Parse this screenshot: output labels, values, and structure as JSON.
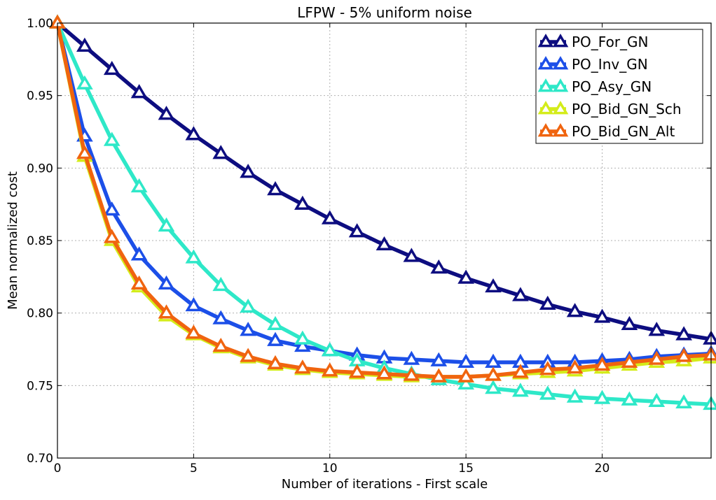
{
  "chart_data": {
    "type": "line",
    "title": "LFPW - 5% uniform noise",
    "xlabel": "Number of iterations - First scale",
    "ylabel": "Mean normalized cost",
    "xlim": [
      0,
      24
    ],
    "ylim": [
      0.7,
      1.0
    ],
    "x_ticks": [
      0,
      5,
      10,
      15,
      20
    ],
    "y_ticks": [
      0.7,
      0.75,
      0.8,
      0.85,
      0.9,
      0.95,
      1.0
    ],
    "x_tick_labels": [
      "0",
      "5",
      "10",
      "15",
      "20"
    ],
    "y_tick_labels": [
      "0.70",
      "0.75",
      "0.80",
      "0.85",
      "0.90",
      "0.95",
      "1.00"
    ],
    "grid": true,
    "legend_position": "top-right",
    "x": [
      0,
      1,
      2,
      3,
      4,
      5,
      6,
      7,
      8,
      9,
      10,
      11,
      12,
      13,
      14,
      15,
      16,
      17,
      18,
      19,
      20,
      21,
      22,
      23,
      24
    ],
    "series": [
      {
        "name": "PO_For_GN",
        "color": "#0d0d80",
        "values": [
          1.0,
          0.984,
          0.968,
          0.952,
          0.937,
          0.923,
          0.91,
          0.897,
          0.885,
          0.875,
          0.865,
          0.856,
          0.847,
          0.839,
          0.831,
          0.824,
          0.818,
          0.812,
          0.806,
          0.801,
          0.797,
          0.792,
          0.788,
          0.785,
          0.782
        ]
      },
      {
        "name": "PO_Inv_GN",
        "color": "#1c4fe8",
        "values": [
          1.0,
          0.922,
          0.871,
          0.84,
          0.82,
          0.805,
          0.796,
          0.788,
          0.781,
          0.777,
          0.774,
          0.771,
          0.769,
          0.768,
          0.767,
          0.766,
          0.766,
          0.766,
          0.766,
          0.766,
          0.767,
          0.768,
          0.77,
          0.771,
          0.772
        ]
      },
      {
        "name": "PO_Asy_GN",
        "color": "#2ee8c8",
        "values": [
          1.0,
          0.958,
          0.919,
          0.887,
          0.86,
          0.838,
          0.819,
          0.804,
          0.792,
          0.782,
          0.774,
          0.767,
          0.762,
          0.758,
          0.754,
          0.751,
          0.748,
          0.746,
          0.744,
          0.742,
          0.741,
          0.74,
          0.739,
          0.738,
          0.737
        ]
      },
      {
        "name": "PO_Bid_GN_Sch",
        "color": "#d4ec1a",
        "values": [
          1.0,
          0.908,
          0.85,
          0.818,
          0.798,
          0.785,
          0.776,
          0.769,
          0.764,
          0.761,
          0.759,
          0.758,
          0.757,
          0.756,
          0.756,
          0.756,
          0.757,
          0.758,
          0.759,
          0.76,
          0.762,
          0.764,
          0.766,
          0.767,
          0.769
        ]
      },
      {
        "name": "PO_Bid_GN_Alt",
        "color": "#f0640f",
        "values": [
          1.0,
          0.91,
          0.852,
          0.82,
          0.8,
          0.786,
          0.777,
          0.77,
          0.765,
          0.762,
          0.76,
          0.759,
          0.758,
          0.757,
          0.756,
          0.756,
          0.757,
          0.759,
          0.761,
          0.762,
          0.764,
          0.766,
          0.768,
          0.77,
          0.771
        ]
      }
    ]
  }
}
